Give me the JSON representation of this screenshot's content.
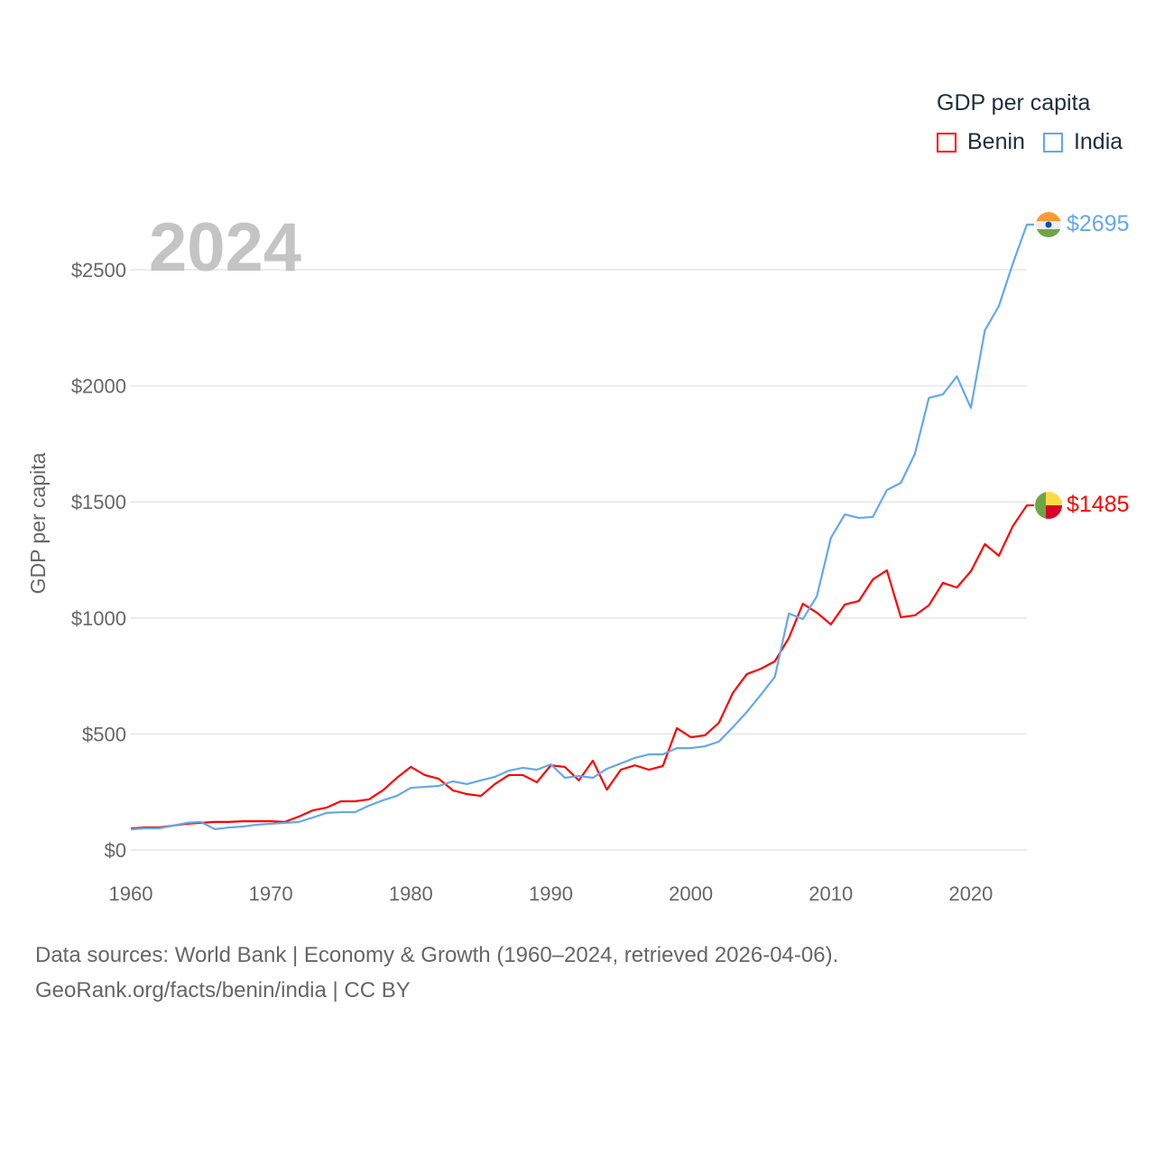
{
  "chart_data": {
    "type": "line",
    "title": "",
    "year_label": "2024",
    "ylabel": "GDP per capita",
    "xlabel": "",
    "xlim": [
      1960,
      2024
    ],
    "ylim": [
      0,
      2500
    ],
    "x_ticks": [
      "1960",
      "1970",
      "1980",
      "1990",
      "2000",
      "2010",
      "2020"
    ],
    "y_ticks": [
      "$0",
      "$500",
      "$1000",
      "$1500",
      "$2000",
      "$2500"
    ],
    "legend": {
      "title": "GDP per capita",
      "position": "top-right"
    },
    "grid": true,
    "x": [
      1960,
      1961,
      1962,
      1963,
      1964,
      1965,
      1966,
      1967,
      1968,
      1969,
      1970,
      1971,
      1972,
      1973,
      1974,
      1975,
      1976,
      1977,
      1978,
      1979,
      1980,
      1981,
      1982,
      1983,
      1984,
      1985,
      1986,
      1987,
      1988,
      1989,
      1990,
      1991,
      1992,
      1993,
      1994,
      1995,
      1996,
      1997,
      1998,
      1999,
      2000,
      2001,
      2002,
      2003,
      2004,
      2005,
      2006,
      2007,
      2008,
      2009,
      2010,
      2011,
      2012,
      2013,
      2014,
      2015,
      2016,
      2017,
      2018,
      2019,
      2020,
      2021,
      2022,
      2023,
      2024
    ],
    "series": [
      {
        "name": "Benin",
        "color": "#ff0000",
        "end_label": "$1485",
        "flag": "benin-flag",
        "values": [
          93,
          97,
          97,
          105,
          113,
          117,
          121,
          121,
          124,
          124,
          124,
          121,
          144,
          171,
          183,
          210,
          210,
          218,
          257,
          311,
          358,
          323,
          307,
          257,
          241,
          233,
          284,
          323,
          323,
          292,
          365,
          358,
          300,
          385,
          260,
          346,
          365,
          346,
          362,
          525,
          486,
          494,
          548,
          677,
          758,
          781,
          813,
          914,
          1061,
          1023,
          972,
          1058,
          1073,
          1166,
          1205,
          1003,
          1011,
          1054,
          1151,
          1131,
          1201,
          1318,
          1268,
          1396,
          1485
        ]
      },
      {
        "name": "India",
        "color": "#63a8eb",
        "end_label": "$2695",
        "flag": "india-flag",
        "values": [
          89,
          93,
          93,
          105,
          117,
          121,
          90,
          97,
          101,
          109,
          113,
          117,
          121,
          140,
          160,
          163,
          163,
          191,
          214,
          233,
          268,
          272,
          276,
          296,
          284,
          300,
          315,
          342,
          354,
          346,
          369,
          311,
          319,
          311,
          350,
          373,
          397,
          412,
          412,
          439,
          439,
          447,
          467,
          529,
          595,
          669,
          746,
          1019,
          995,
          1093,
          1345,
          1446,
          1431,
          1435,
          1551,
          1582,
          1707,
          1948,
          1963,
          2041,
          1905,
          2239,
          2344,
          2527,
          2695
        ]
      }
    ]
  },
  "footer": {
    "line1": "Data sources: World Bank | Economy & Growth (1960–2024, retrieved 2026-04-06).",
    "line2": "GeoRank.org/facts/benin/india | CC BY"
  }
}
